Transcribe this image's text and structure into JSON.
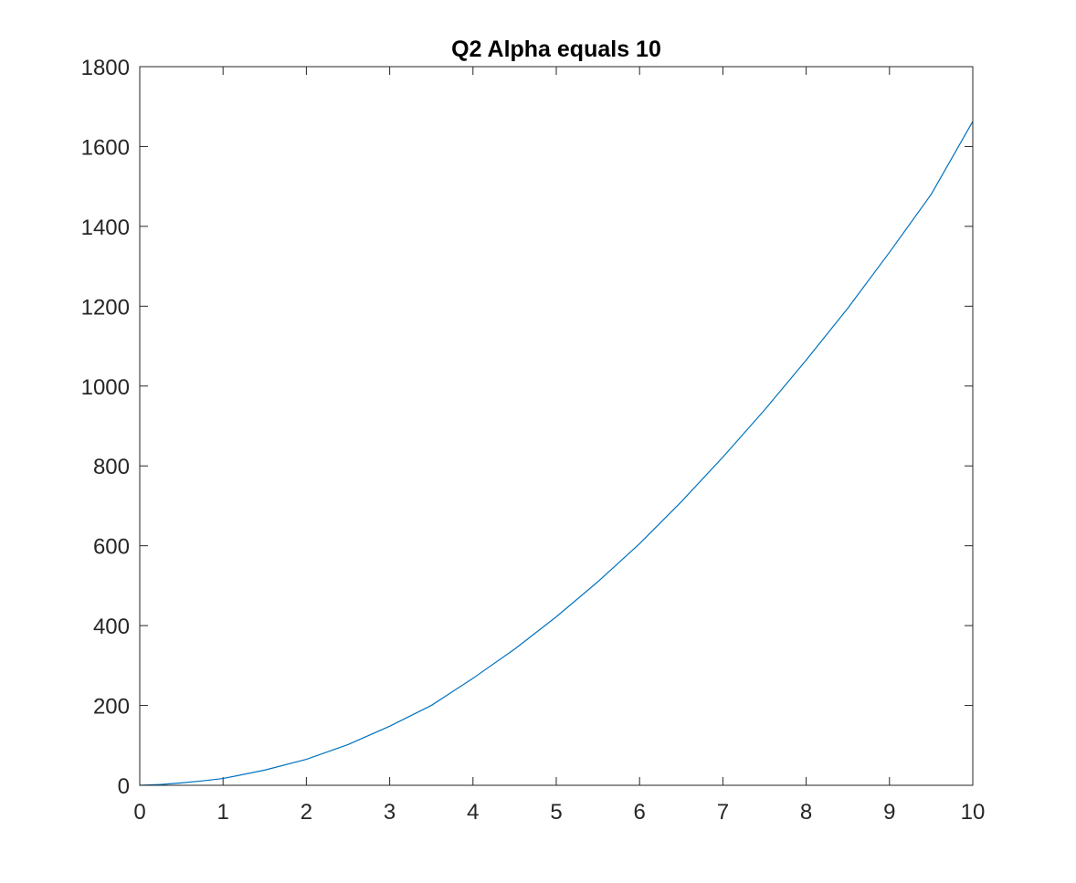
{
  "chart_data": {
    "type": "line",
    "title": "Q2 Alpha equals 10",
    "xlabel": "",
    "ylabel": "",
    "xlim": [
      0,
      10
    ],
    "ylim": [
      0,
      1800
    ],
    "xticks": [
      0,
      1,
      2,
      3,
      4,
      5,
      6,
      7,
      8,
      9,
      10
    ],
    "yticks": [
      0,
      200,
      400,
      600,
      800,
      1000,
      1200,
      1400,
      1600,
      1800
    ],
    "grid": false,
    "legend": "none",
    "series": [
      {
        "color": "#0072BD",
        "x": [
          0,
          0.25,
          0.5,
          0.75,
          1,
          1.5,
          2,
          2.5,
          3,
          3.5,
          4,
          4.5,
          5,
          5.5,
          6,
          6.5,
          7,
          7.5,
          8,
          8.5,
          9,
          9.5,
          10
        ],
        "y": [
          0,
          2,
          6,
          11,
          17,
          38,
          65,
          102,
          148,
          200,
          268,
          341,
          422,
          510,
          605,
          710,
          822,
          940,
          1065,
          1195,
          1335,
          1480,
          1663
        ]
      }
    ]
  }
}
